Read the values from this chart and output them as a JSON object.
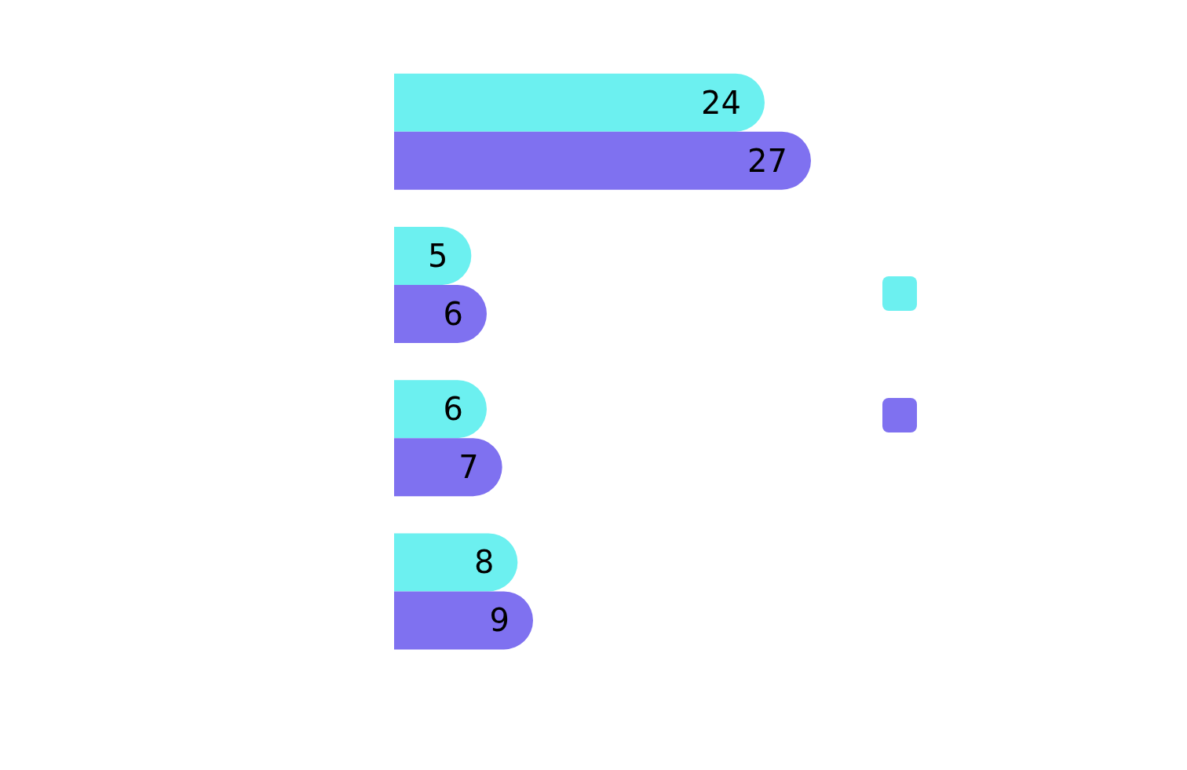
{
  "chart_data": {
    "type": "bar",
    "orientation": "horizontal",
    "categories": [
      null,
      null,
      null,
      null
    ],
    "series": [
      {
        "color": "#6cf0f0",
        "values": [
          24,
          5,
          6,
          8
        ]
      },
      {
        "color": "#7f71f0",
        "values": [
          27,
          6,
          7,
          9
        ]
      }
    ],
    "data_labels": true,
    "tick_labels": false
  }
}
